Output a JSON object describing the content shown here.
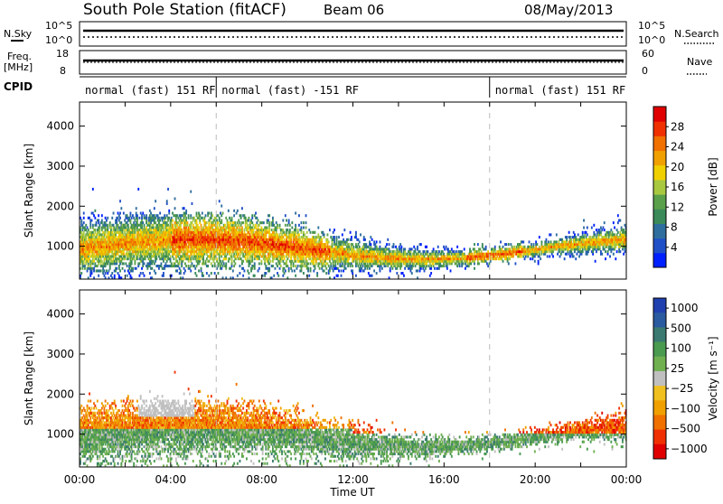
{
  "header": {
    "station": "South Pole Station (fitACF)",
    "beam": "Beam 06",
    "date": "08/May/2013"
  },
  "panels": {
    "nsky_label": "N.Sky",
    "nsearch_label": "N.Search",
    "freq_label_1": "Freq.",
    "freq_label_2": "[MHz]",
    "nave_label": "Nave",
    "cpid_label": "CPID",
    "left_ticks_top": [
      "10^5",
      "10^0"
    ],
    "right_ticks_top": [
      "10^5",
      "10^0"
    ],
    "freq_ticks": [
      "18",
      "8"
    ],
    "nave_ticks": [
      "60",
      "0"
    ]
  },
  "cpid_segments": [
    {
      "label": "normal (fast) 151 RF",
      "start": 0,
      "end": 6
    },
    {
      "label": "normal (fast) -151 RF",
      "start": 6,
      "end": 18
    },
    {
      "label": "normal (fast) 151 RF",
      "start": 18,
      "end": 24
    }
  ],
  "chart_data": [
    {
      "type": "heatmap",
      "title": "Power",
      "xlabel": "",
      "ylabel": "Slant Range [km]",
      "xlim": [
        0,
        24
      ],
      "ylim": [
        180,
        4600
      ],
      "y_ticks": [
        "1000",
        "2000",
        "3000",
        "4000"
      ],
      "colorbar": {
        "label": "Power [dB]",
        "ticks": [
          "4",
          "8",
          "12",
          "16",
          "20",
          "24",
          "28"
        ],
        "colors": [
          "#0020ff",
          "#2050c8",
          "#2e6e9e",
          "#3a8a5a",
          "#5aa04a",
          "#a8c840",
          "#f0d000",
          "#f0a000",
          "#f07000",
          "#f03000",
          "#e00000"
        ]
      }
    },
    {
      "type": "heatmap",
      "title": "Velocity",
      "xlabel": "Time UT",
      "ylabel": "Slant Range [km]",
      "xlim": [
        0,
        24
      ],
      "ylim": [
        180,
        4600
      ],
      "x_ticks": [
        "00:00",
        "04:00",
        "08:00",
        "12:00",
        "16:00",
        "20:00",
        "00:00"
      ],
      "y_ticks": [
        "1000",
        "2000",
        "3000",
        "4000"
      ],
      "colorbar": {
        "label": "Velocity [m s⁻¹]",
        "ticks": [
          "1000",
          "500",
          "100",
          "25",
          "−25",
          "−100",
          "−500",
          "−1000"
        ],
        "colors": [
          "#2040b0",
          "#2a5aa0",
          "#3a7a70",
          "#4a9a50",
          "#70b050",
          "#c0c0c0",
          "#f0c020",
          "#f0a000",
          "#f07000",
          "#f03000",
          "#e00000"
        ]
      }
    }
  ]
}
